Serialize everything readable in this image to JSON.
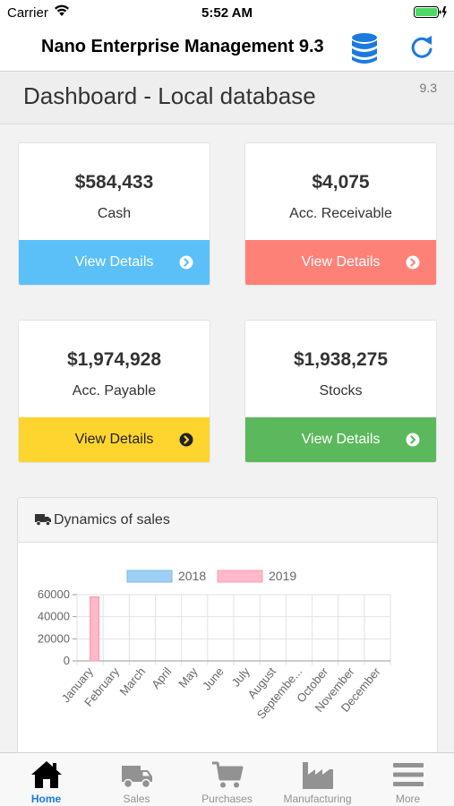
{
  "status_bar": {
    "carrier": "Carrier",
    "time": "5:52 AM"
  },
  "nav": {
    "title": "Nano Enterprise Management 9.3",
    "db_icon": "database-icon",
    "refresh_icon": "refresh-icon"
  },
  "header": {
    "title": "Dashboard - Local database",
    "version": "9.3"
  },
  "cards": [
    {
      "value": "$584,433",
      "label": "Cash",
      "action": "View Details",
      "color": "#5bc0f8",
      "text_color": "#ffffff"
    },
    {
      "value": "$4,075",
      "label": "Acc. Receivable",
      "action": "View Details",
      "color": "#fe8178",
      "text_color": "#ffffff"
    },
    {
      "value": "$1,974,928",
      "label": "Acc. Payable",
      "action": "View Details",
      "color": "#fed42f",
      "text_color": "#222222"
    },
    {
      "value": "$1,938,275",
      "label": "Stocks",
      "action": "View Details",
      "color": "#5cb85c",
      "text_color": "#ffffff"
    }
  ],
  "panel": {
    "title": "Dynamics of sales",
    "icon": "truck-icon"
  },
  "chart_data": {
    "type": "bar",
    "categories": [
      "January",
      "February",
      "March",
      "April",
      "May",
      "June",
      "July",
      "August",
      "Septembe...",
      "October",
      "November",
      "December"
    ],
    "series": [
      {
        "name": "2018",
        "values": [
          0,
          0,
          0,
          0,
          0,
          0,
          0,
          0,
          0,
          0,
          0,
          0
        ],
        "color": "#9ed0f5"
      },
      {
        "name": "2019",
        "values": [
          58000,
          0,
          0,
          0,
          0,
          0,
          0,
          0,
          0,
          0,
          0,
          0
        ],
        "color": "#ffb9c8"
      }
    ],
    "yticks": [
      "0",
      "20000",
      "40000",
      "60000"
    ],
    "ylim": [
      0,
      60000
    ],
    "grid": true,
    "legend": "top",
    "title": "",
    "xlabel": "",
    "ylabel": ""
  },
  "tabs": [
    {
      "label": "Home",
      "icon": "home-icon",
      "active": true
    },
    {
      "label": "Sales",
      "icon": "truck-icon",
      "active": false
    },
    {
      "label": "Purchases",
      "icon": "cart-icon",
      "active": false
    },
    {
      "label": "Manufacturing",
      "icon": "factory-icon",
      "active": false
    },
    {
      "label": "More",
      "icon": "menu-icon",
      "active": false
    }
  ],
  "colors": {
    "accent": "#1a7ae0",
    "inactive": "#929292"
  }
}
